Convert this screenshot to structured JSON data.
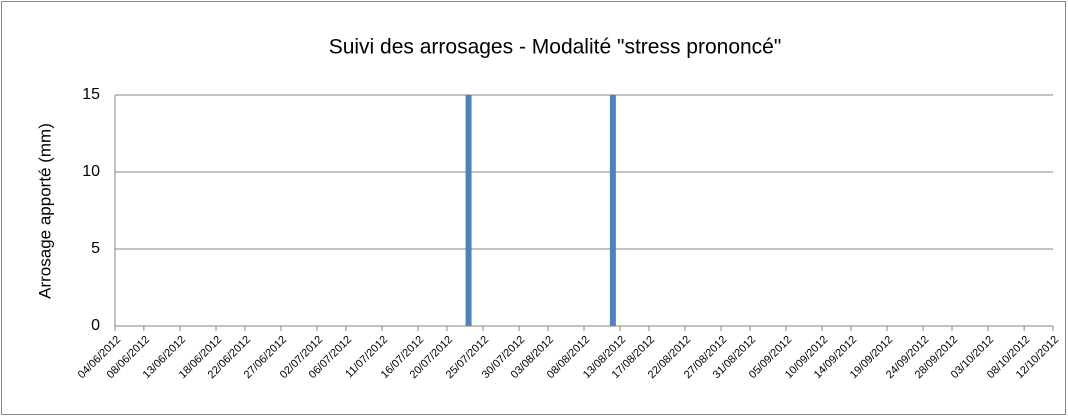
{
  "chart_data": {
    "type": "bar",
    "title": "Suivi des arrosages - Modalité \"stress prononcé\"",
    "y_label": "Arrosage apporté (mm)",
    "x": [
      "23/07/2012",
      "12/08/2012"
    ],
    "values": [
      15,
      15
    ],
    "color": "#4f81bd",
    "xlim": [
      "04/06/2012",
      "12/10/2012"
    ],
    "xticks": [
      "04/06/2012",
      "08/06/2012",
      "13/06/2012",
      "18/06/2012",
      "22/06/2012",
      "27/06/2012",
      "02/07/2012",
      "06/07/2012",
      "11/07/2012",
      "16/07/2012",
      "20/07/2012",
      "25/07/2012",
      "30/07/2012",
      "03/08/2012",
      "08/08/2012",
      "13/08/2012",
      "17/08/2012",
      "22/08/2012",
      "27/08/2012",
      "31/08/2012",
      "05/09/2012",
      "10/09/2012",
      "14/09/2012",
      "19/09/2012",
      "24/09/2012",
      "28/09/2012",
      "03/10/2012",
      "08/10/2012",
      "12/10/2012"
    ],
    "ylim": [
      0,
      15
    ],
    "yticks": [
      0,
      5,
      10,
      15
    ],
    "grid": true
  }
}
